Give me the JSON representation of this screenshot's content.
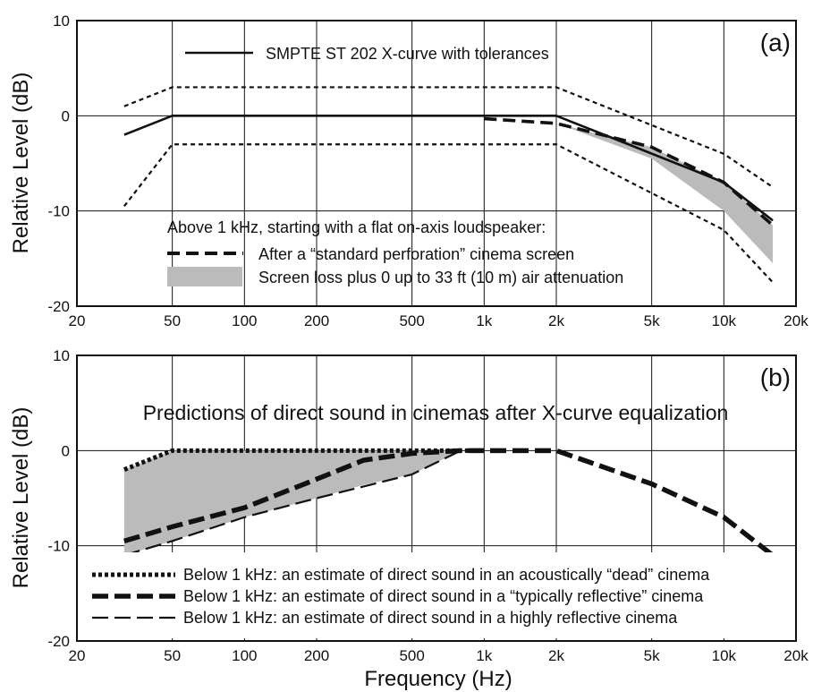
{
  "chart_data": [
    {
      "panel_label": "(a)",
      "type": "line",
      "xscale": "log",
      "xlim": [
        20,
        20000
      ],
      "ylim": [
        -20,
        10
      ],
      "ylabel": "Relative Level (dB)",
      "xlabel": "",
      "grid": true,
      "x_ticks": [
        20,
        50,
        100,
        200,
        500,
        1000,
        2000,
        5000,
        10000,
        20000
      ],
      "x_tick_labels": [
        "20",
        "50",
        "100",
        "200",
        "500",
        "1k",
        "2k",
        "5k",
        "10k",
        "20k"
      ],
      "y_ticks": [
        10,
        0,
        -10,
        -20
      ],
      "y_tick_labels": [
        "10",
        "0",
        "-10",
        "-20"
      ],
      "legend_heading": "Above 1 kHz, starting with a flat on-axis loudspeaker:",
      "series": [
        {
          "name": "SMPTE ST 202 X-curve with tolerances",
          "style": "solid",
          "x": [
            31.5,
            50,
            2000,
            4000,
            10000,
            16000
          ],
          "y": [
            -2,
            0,
            0,
            -3,
            -7,
            -11
          ]
        },
        {
          "style": "dotted-tolerance",
          "x": [
            31.5,
            50,
            2000,
            10000,
            16000
          ],
          "y": [
            1,
            3,
            3,
            -4,
            -7.5
          ]
        },
        {
          "style": "dotted-tolerance",
          "x": [
            31.5,
            50,
            2000,
            10000,
            16000
          ],
          "y": [
            -9.5,
            -3,
            -3,
            -12,
            -17.5
          ]
        },
        {
          "name": "After a “standard perforation” cinema screen",
          "style": "dashed",
          "x": [
            1000,
            2000,
            5000,
            10000,
            16000
          ],
          "y": [
            -0.3,
            -0.8,
            -3.3,
            -7,
            -11.5
          ]
        },
        {
          "name": "Screen loss plus 0 up to 33 ft (10 m) air attenuation",
          "style": "band",
          "color": "#bbbbbb",
          "x": [
            1000,
            2000,
            5000,
            10000,
            16000
          ],
          "upper": [
            -0.3,
            -0.8,
            -3.3,
            -7,
            -11.5
          ],
          "lower": [
            -0.3,
            -0.8,
            -4.5,
            -10,
            -15.5
          ]
        }
      ]
    },
    {
      "panel_label": "(b)",
      "type": "line",
      "title": "Predictions of direct sound in cinemas after X-curve equalization",
      "xscale": "log",
      "xlim": [
        20,
        20000
      ],
      "ylim": [
        -20,
        10
      ],
      "ylabel": "Relative Level (dB)",
      "xlabel": "Frequency (Hz)",
      "grid": true,
      "x_ticks": [
        20,
        50,
        100,
        200,
        500,
        1000,
        2000,
        5000,
        10000,
        20000
      ],
      "x_tick_labels": [
        "20",
        "50",
        "100",
        "200",
        "500",
        "1k",
        "2k",
        "5k",
        "10k",
        "20k"
      ],
      "y_ticks": [
        10,
        0,
        -10,
        -20
      ],
      "y_tick_labels": [
        "10",
        "0",
        "-10",
        "-20"
      ],
      "series": [
        {
          "name": "Below 1 kHz: an estimate of direct sound in an acoustically “dead” cinema",
          "style": "dotted",
          "x": [
            31.5,
            50,
            1000
          ],
          "y": [
            -2,
            0,
            0
          ]
        },
        {
          "name": "Below 1 kHz: an estimate of direct sound in a “typically reflective” cinema",
          "style": "thick-dashed",
          "x": [
            31.5,
            50,
            100,
            200,
            315,
            500,
            800,
            1000,
            2000,
            5000,
            10000,
            16000
          ],
          "y": [
            -9.5,
            -8,
            -6,
            -3,
            -1,
            -0.3,
            0,
            0,
            0,
            -3.5,
            -7,
            -11
          ]
        },
        {
          "name": "Below 1 kHz: an estimate of direct sound in a highly reflective cinema",
          "style": "thin-dashed",
          "x": [
            31.5,
            50,
            100,
            200,
            500,
            800,
            1000
          ],
          "y": [
            -11,
            -9.5,
            -7,
            -5,
            -2.5,
            0,
            0
          ]
        },
        {
          "style": "band",
          "color": "#bbbbbb",
          "x": [
            31.5,
            50,
            100,
            200,
            315,
            500,
            800
          ],
          "upper": [
            -2,
            0,
            0,
            0,
            0,
            0,
            0
          ],
          "lower": [
            -11,
            -9.5,
            -7,
            -5,
            -3.6,
            -2.5,
            0
          ]
        }
      ]
    }
  ]
}
